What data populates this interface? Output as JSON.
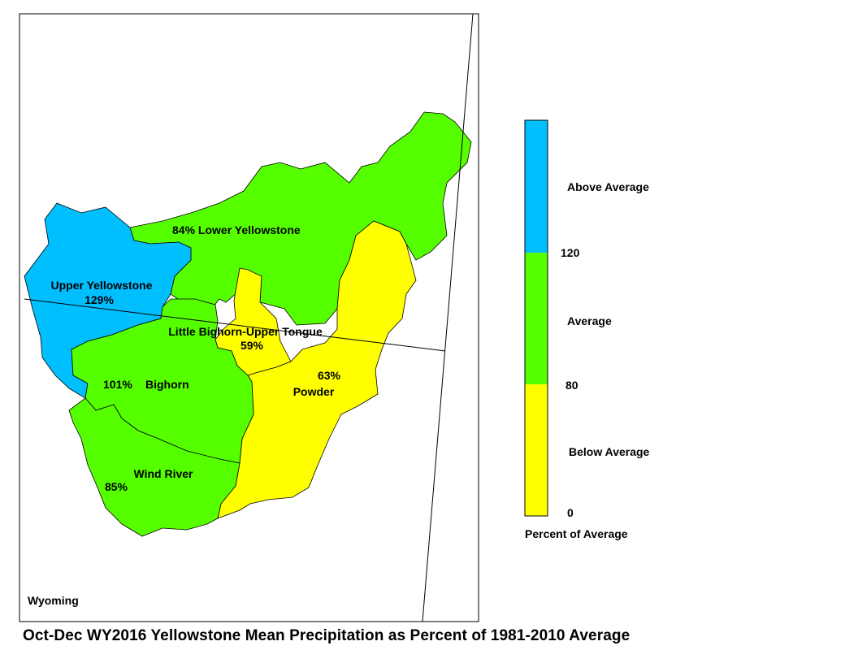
{
  "title": "Oct-Dec WY2016 Yellowstone Mean Precipitation as Percent of 1981-2010 Average",
  "state_label": "Wyoming",
  "basins": [
    {
      "name": "Upper Yellowstone",
      "percent": "129%",
      "category": "Above Average"
    },
    {
      "name": "Lower Yellowstone",
      "percent": "84%",
      "category": "Average"
    },
    {
      "name": "Little Bighorn-Upper Tongue",
      "percent": "59%",
      "category": "Below Average"
    },
    {
      "name": "Bighorn",
      "percent": "101%",
      "category": "Average"
    },
    {
      "name": "Powder",
      "percent": "63%",
      "category": "Below Average"
    },
    {
      "name": "Wind River",
      "percent": "85%",
      "category": "Average"
    }
  ],
  "legend": {
    "title": "Percent of Average",
    "classes": [
      {
        "label": "Above Average",
        "color": "#00BFFF"
      },
      {
        "label": "Average",
        "color": "#55FF00"
      },
      {
        "label": "Below Average",
        "color": "#FFFF00"
      }
    ],
    "breaks": [
      "120",
      "80",
      "0"
    ]
  },
  "colors": {
    "above": "#00BFFF",
    "average": "#55FF00",
    "below": "#FFFF00",
    "outline": "#000000"
  }
}
